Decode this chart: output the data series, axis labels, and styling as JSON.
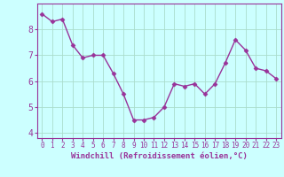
{
  "x": [
    0,
    1,
    2,
    3,
    4,
    5,
    6,
    7,
    8,
    9,
    10,
    11,
    12,
    13,
    14,
    15,
    16,
    17,
    18,
    19,
    20,
    21,
    22,
    23
  ],
  "y": [
    8.6,
    8.3,
    8.4,
    7.4,
    6.9,
    7.0,
    7.0,
    6.3,
    5.5,
    4.5,
    4.5,
    4.6,
    5.0,
    5.9,
    5.8,
    5.9,
    5.5,
    5.9,
    6.7,
    7.6,
    7.2,
    6.5,
    6.4,
    6.1
  ],
  "line_color": "#993399",
  "marker": "D",
  "markersize": 2.5,
  "linewidth": 1.0,
  "background_color": "#ccffff",
  "grid_color": "#aaddcc",
  "xlabel": "Windchill (Refroidissement éolien,°C)",
  "xlabel_color": "#993399",
  "tick_color": "#993399",
  "spine_color": "#993399",
  "ylim": [
    3.8,
    9.0
  ],
  "xlim": [
    -0.5,
    23.5
  ],
  "yticks": [
    4,
    5,
    6,
    7,
    8
  ],
  "xticks": [
    0,
    1,
    2,
    3,
    4,
    5,
    6,
    7,
    8,
    9,
    10,
    11,
    12,
    13,
    14,
    15,
    16,
    17,
    18,
    19,
    20,
    21,
    22,
    23
  ],
  "tick_fontsize": 5.5,
  "ytick_fontsize": 7,
  "xlabel_fontsize": 6.5
}
